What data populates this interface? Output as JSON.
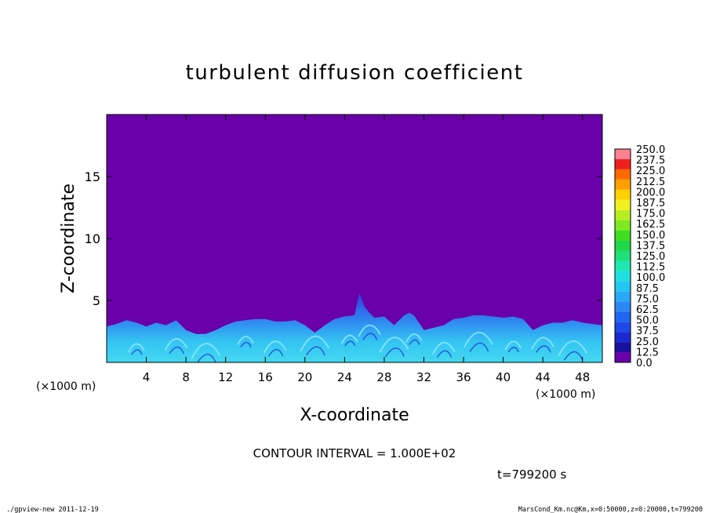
{
  "chart_data": {
    "type": "heatmap",
    "title": "turbulent diffusion coefficient",
    "xlabel": "X-coordinate",
    "ylabel": "Z-coordinate",
    "x_unit": "(×1000 m)",
    "y_unit": "(×1000 m)",
    "xlim": [
      0,
      50
    ],
    "ylim": [
      0,
      20
    ],
    "x_ticks": [
      4,
      8,
      12,
      16,
      20,
      24,
      28,
      32,
      36,
      40,
      44,
      48
    ],
    "y_ticks": [
      5,
      10,
      15
    ],
    "colorbar": {
      "levels": [
        "0.0",
        "12.5",
        "25.0",
        "37.5",
        "50.0",
        "62.5",
        "75.0",
        "87.5",
        "100.0",
        "112.5",
        "125.0",
        "137.5",
        "150.0",
        "162.5",
        "175.0",
        "187.5",
        "200.0",
        "212.5",
        "225.0",
        "237.5",
        "250.0"
      ],
      "colors": [
        "#6a00aa",
        "#1a10a0",
        "#1a2ad0",
        "#1e48e8",
        "#2066f0",
        "#2a88f2",
        "#28a8f6",
        "#22c8f2",
        "#20dfe0",
        "#1ee8b0",
        "#20e07a",
        "#20d848",
        "#40dd20",
        "#7ee820",
        "#b8ee20",
        "#f0f020",
        "#ffd000",
        "#ffa000",
        "#ff6a00",
        "#f02020",
        "#ff8090"
      ]
    },
    "background_value": "0.0",
    "turbulent_layer": {
      "description_level_range": [
        "12.5",
        "87.5"
      ],
      "top_height_x_km": [
        [
          0,
          2.9
        ],
        [
          1,
          3.1
        ],
        [
          2,
          3.4
        ],
        [
          3,
          3.2
        ],
        [
          4,
          2.9
        ],
        [
          5,
          3.2
        ],
        [
          6,
          3.0
        ],
        [
          7,
          3.4
        ],
        [
          8,
          2.6
        ],
        [
          9,
          2.3
        ],
        [
          10,
          2.3
        ],
        [
          11,
          2.6
        ],
        [
          12,
          3.0
        ],
        [
          13,
          3.3
        ],
        [
          14,
          3.4
        ],
        [
          15,
          3.5
        ],
        [
          16,
          3.5
        ],
        [
          17,
          3.3
        ],
        [
          18,
          3.3
        ],
        [
          19,
          3.4
        ],
        [
          20,
          3.0
        ],
        [
          21,
          2.4
        ],
        [
          22,
          3.0
        ],
        [
          23,
          3.5
        ],
        [
          24,
          3.7
        ],
        [
          25,
          3.8
        ],
        [
          25.5,
          5.6
        ],
        [
          26,
          4.5
        ],
        [
          26.5,
          4.0
        ],
        [
          27,
          3.6
        ],
        [
          28,
          3.7
        ],
        [
          29,
          3.0
        ],
        [
          30,
          3.8
        ],
        [
          30.5,
          4.0
        ],
        [
          31,
          3.8
        ],
        [
          32,
          2.6
        ],
        [
          33,
          2.8
        ],
        [
          34,
          3.0
        ],
        [
          35,
          3.5
        ],
        [
          36,
          3.6
        ],
        [
          37,
          3.8
        ],
        [
          38,
          3.8
        ],
        [
          39,
          3.7
        ],
        [
          40,
          3.6
        ],
        [
          41,
          3.7
        ],
        [
          42,
          3.5
        ],
        [
          43,
          2.6
        ],
        [
          44,
          3.0
        ],
        [
          45,
          3.2
        ],
        [
          46,
          3.2
        ],
        [
          47,
          3.4
        ],
        [
          48,
          3.2
        ],
        [
          49,
          3.1
        ],
        [
          50,
          3.0
        ]
      ]
    },
    "contour_interval": "CONTOUR INTERVAL = 1.000E+02",
    "time_label": "t=799200 s",
    "footer_left": "./gpview-new  2011-12-19",
    "footer_right": "MarsCond_Km.nc@Km,x=0:50000,z=0:20000,t=799200"
  }
}
